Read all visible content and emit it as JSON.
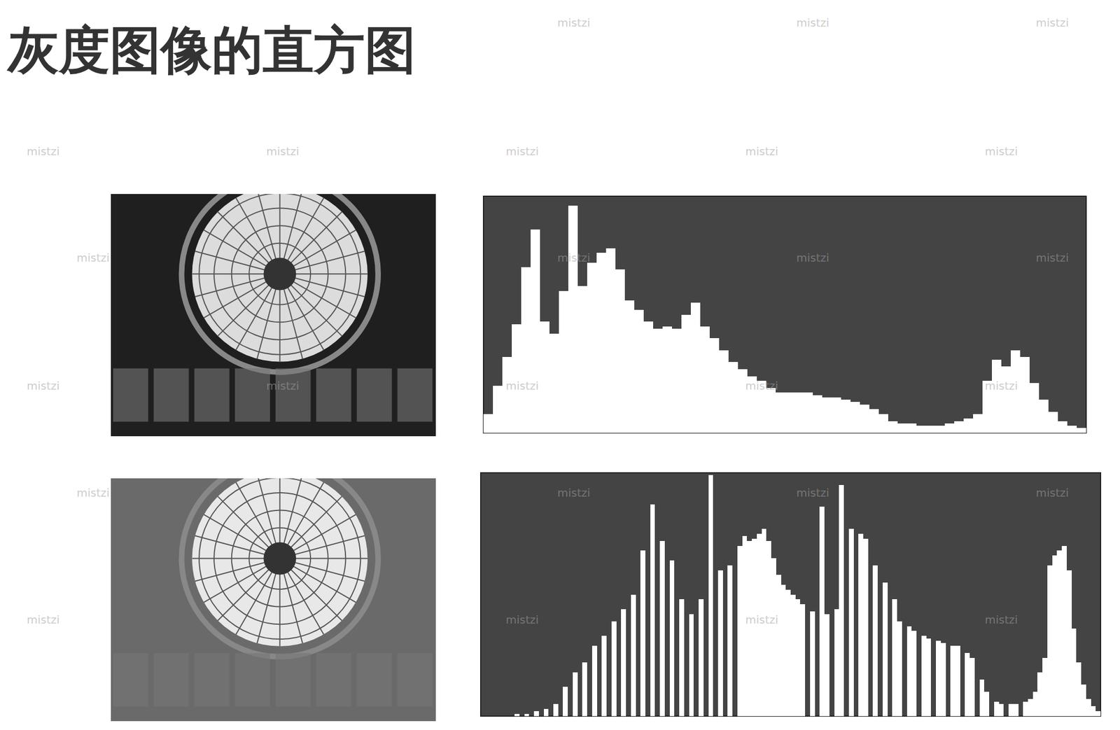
{
  "title": "灰度图像的直方图",
  "watermark": "mistzi",
  "chart_data": [
    {
      "type": "histogram",
      "color": "#ffffff",
      "tick_labels": false,
      "xlim": [
        0,
        256
      ],
      "ylim": [
        0,
        100
      ],
      "bins": [
        0,
        4,
        8,
        12,
        16,
        20,
        24,
        28,
        32,
        36,
        40,
        44,
        48,
        52,
        56,
        60,
        64,
        68,
        72,
        76,
        80,
        84,
        88,
        92,
        96,
        100,
        104,
        108,
        112,
        116,
        120,
        124,
        128,
        132,
        136,
        140,
        144,
        148,
        152,
        156,
        160,
        164,
        168,
        172,
        176,
        180,
        184,
        188,
        192,
        196,
        200,
        204,
        208,
        212,
        216,
        220,
        224,
        228,
        232,
        236,
        240,
        244,
        248,
        252,
        256
      ],
      "values": [
        8,
        20,
        32,
        46,
        70,
        86,
        47,
        42,
        60,
        96,
        62,
        72,
        76,
        78,
        69,
        56,
        52,
        47,
        44,
        45,
        44,
        50,
        55,
        45,
        40,
        35,
        30,
        27,
        24,
        22,
        19,
        17,
        17,
        17,
        17,
        16,
        15,
        15,
        14,
        13,
        12,
        10,
        8,
        5,
        4,
        4,
        3,
        3,
        3,
        4,
        5,
        6,
        8,
        22,
        31,
        28,
        35,
        32,
        21,
        14,
        9,
        5,
        3,
        2
      ]
    },
    {
      "type": "histogram",
      "color": "#ffffff",
      "tick_labels": false,
      "xlim": [
        0,
        256
      ],
      "ylim": [
        0,
        100
      ],
      "bins": [
        0,
        2,
        4,
        6,
        8,
        10,
        12,
        14,
        16,
        18,
        20,
        22,
        24,
        26,
        28,
        30,
        32,
        34,
        36,
        38,
        40,
        42,
        44,
        46,
        48,
        50,
        52,
        54,
        56,
        58,
        60,
        62,
        64,
        66,
        68,
        70,
        72,
        74,
        76,
        78,
        80,
        82,
        84,
        86,
        88,
        90,
        92,
        94,
        96,
        98,
        100,
        102,
        104,
        106,
        108,
        110,
        112,
        114,
        116,
        118,
        120,
        122,
        124,
        126,
        128,
        130,
        132,
        134,
        136,
        138,
        140,
        142,
        144,
        146,
        148,
        150,
        152,
        154,
        156,
        158,
        160,
        162,
        164,
        166,
        168,
        170,
        172,
        174,
        176,
        178,
        180,
        182,
        184,
        186,
        188,
        190,
        192,
        194,
        196,
        198,
        200,
        202,
        204,
        206,
        208,
        210,
        212,
        214,
        216,
        218,
        220,
        222,
        224,
        226,
        228,
        230,
        232,
        234,
        236,
        238,
        240,
        242,
        244,
        246,
        248,
        250,
        252,
        254,
        256
      ],
      "values": [
        0,
        0,
        0,
        0,
        0,
        0,
        0,
        1,
        0,
        1,
        0,
        2,
        0,
        3,
        0,
        5,
        0,
        12,
        0,
        18,
        0,
        22,
        0,
        29,
        0,
        33,
        0,
        39,
        0,
        44,
        0,
        50,
        0,
        68,
        0,
        87,
        0,
        72,
        0,
        64,
        0,
        48,
        0,
        42,
        0,
        48,
        0,
        99,
        0,
        60,
        0,
        62,
        0,
        70,
        74,
        72,
        73,
        75,
        77,
        72,
        65,
        58,
        54,
        52,
        50,
        48,
        46,
        0,
        43,
        0,
        86,
        42,
        0,
        44,
        95,
        0,
        77,
        0,
        75,
        73,
        0,
        62,
        0,
        55,
        0,
        48,
        39,
        0,
        37,
        35,
        0,
        33,
        32,
        0,
        31,
        30,
        0,
        29,
        29,
        0,
        26,
        24,
        0,
        15,
        10,
        0,
        6,
        5,
        0,
        5,
        5,
        0,
        6,
        7,
        10,
        18,
        24,
        62,
        66,
        68,
        70,
        60,
        36,
        22,
        13,
        7,
        4,
        2
      ]
    }
  ]
}
